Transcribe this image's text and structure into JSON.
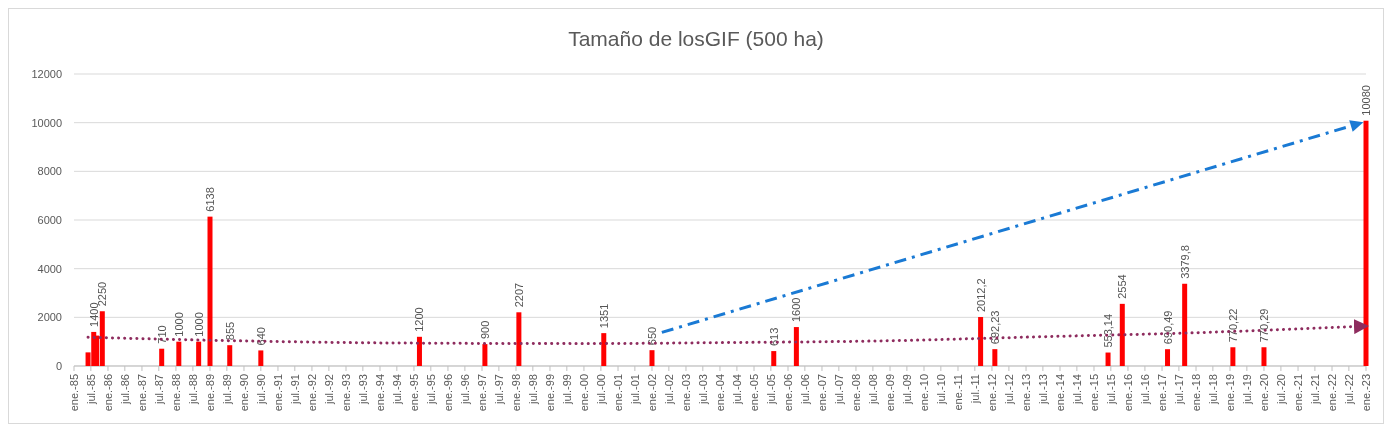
{
  "chart_data": {
    "type": "bar",
    "title": "Tamaño de losGIF (500 ha)",
    "xlim": [
      "1985-01",
      "2023-01"
    ],
    "xticks": [
      {
        "value": "1985-01",
        "label": "ene.-85"
      },
      {
        "value": "1985-07",
        "label": "jul.-85"
      },
      {
        "value": "1986-01",
        "label": "ene.-86"
      },
      {
        "value": "1986-07",
        "label": "jul.-86"
      },
      {
        "value": "1987-01",
        "label": "ene.-87"
      },
      {
        "value": "1987-07",
        "label": "jul.-87"
      },
      {
        "value": "1988-01",
        "label": "ene.-88"
      },
      {
        "value": "1988-07",
        "label": "jul.-88"
      },
      {
        "value": "1989-01",
        "label": "ene.-89"
      },
      {
        "value": "1989-07",
        "label": "jul.-89"
      },
      {
        "value": "1990-01",
        "label": "ene.-90"
      },
      {
        "value": "1990-07",
        "label": "jul.-90"
      },
      {
        "value": "1991-01",
        "label": "ene.-91"
      },
      {
        "value": "1991-07",
        "label": "jul.-91"
      },
      {
        "value": "1992-01",
        "label": "ene.-92"
      },
      {
        "value": "1992-07",
        "label": "jul.-92"
      },
      {
        "value": "1993-01",
        "label": "ene.-93"
      },
      {
        "value": "1993-07",
        "label": "jul.-93"
      },
      {
        "value": "1994-01",
        "label": "ene.-94"
      },
      {
        "value": "1994-07",
        "label": "jul.-94"
      },
      {
        "value": "1995-01",
        "label": "ene.-95"
      },
      {
        "value": "1995-07",
        "label": "jul.-95"
      },
      {
        "value": "1996-01",
        "label": "ene.-96"
      },
      {
        "value": "1996-07",
        "label": "jul.-96"
      },
      {
        "value": "1997-01",
        "label": "ene.-97"
      },
      {
        "value": "1997-07",
        "label": "jul.-97"
      },
      {
        "value": "1998-01",
        "label": "ene.-98"
      },
      {
        "value": "1998-07",
        "label": "jul.-98"
      },
      {
        "value": "1999-01",
        "label": "ene.-99"
      },
      {
        "value": "1999-07",
        "label": "jul.-99"
      },
      {
        "value": "2000-01",
        "label": "ene.-00"
      },
      {
        "value": "2000-07",
        "label": "jul.-00"
      },
      {
        "value": "2001-01",
        "label": "ene.-01"
      },
      {
        "value": "2001-07",
        "label": "jul.-01"
      },
      {
        "value": "2002-01",
        "label": "ene.-02"
      },
      {
        "value": "2002-07",
        "label": "jul.-02"
      },
      {
        "value": "2003-01",
        "label": "ene.-03"
      },
      {
        "value": "2003-07",
        "label": "jul.-03"
      },
      {
        "value": "2004-01",
        "label": "ene.-04"
      },
      {
        "value": "2004-07",
        "label": "jul.-04"
      },
      {
        "value": "2005-01",
        "label": "ene.-05"
      },
      {
        "value": "2005-07",
        "label": "jul.-05"
      },
      {
        "value": "2006-01",
        "label": "ene.-06"
      },
      {
        "value": "2006-07",
        "label": "jul.-06"
      },
      {
        "value": "2007-01",
        "label": "ene.-07"
      },
      {
        "value": "2007-07",
        "label": "jul.-07"
      },
      {
        "value": "2008-01",
        "label": "ene.-08"
      },
      {
        "value": "2008-07",
        "label": "jul.-08"
      },
      {
        "value": "2009-01",
        "label": "ene.-09"
      },
      {
        "value": "2009-07",
        "label": "jul.-09"
      },
      {
        "value": "2010-01",
        "label": "ene.-10"
      },
      {
        "value": "2010-07",
        "label": "jul.-10"
      },
      {
        "value": "2011-01",
        "label": "ene.-11"
      },
      {
        "value": "2011-07",
        "label": "jul.-11"
      },
      {
        "value": "2012-01",
        "label": "ene.-12"
      },
      {
        "value": "2012-07",
        "label": "jul.-12"
      },
      {
        "value": "2013-01",
        "label": "ene.-13"
      },
      {
        "value": "2013-07",
        "label": "jul.-13"
      },
      {
        "value": "2014-01",
        "label": "ene.-14"
      },
      {
        "value": "2014-07",
        "label": "jul.-14"
      },
      {
        "value": "2015-01",
        "label": "ene.-15"
      },
      {
        "value": "2015-07",
        "label": "jul.-15"
      },
      {
        "value": "2016-01",
        "label": "ene.-16"
      },
      {
        "value": "2016-07",
        "label": "jul.-16"
      },
      {
        "value": "2017-01",
        "label": "ene.-17"
      },
      {
        "value": "2017-07",
        "label": "jul.-17"
      },
      {
        "value": "2018-01",
        "label": "ene.-18"
      },
      {
        "value": "2018-07",
        "label": "jul.-18"
      },
      {
        "value": "2019-01",
        "label": "ene.-19"
      },
      {
        "value": "2019-07",
        "label": "jul.-19"
      },
      {
        "value": "2020-01",
        "label": "ene.-20"
      },
      {
        "value": "2020-07",
        "label": "jul.-20"
      },
      {
        "value": "2021-01",
        "label": "ene.-21"
      },
      {
        "value": "2021-07",
        "label": "jul.-21"
      },
      {
        "value": "2022-01",
        "label": "ene.-22"
      },
      {
        "value": "2022-07",
        "label": "jul.-22"
      },
      {
        "value": "2023-01",
        "label": "ene.-23"
      }
    ],
    "ylim": [
      0,
      12000
    ],
    "yticks": [
      0,
      2000,
      4000,
      6000,
      8000,
      10000,
      12000
    ],
    "grid": "y",
    "series": [
      {
        "color": "#ff0000",
        "x": [
          "1985-06",
          "1985-08",
          "1985-09",
          "1985-11",
          "1987-08",
          "1988-02",
          "1988-09",
          "1989-01",
          "1989-08",
          "1990-07",
          "1995-03",
          "1997-02",
          "1998-02",
          "2000-08",
          "2002-01",
          "2005-08",
          "2006-04",
          "2011-09",
          "2012-02",
          "2015-06",
          "2015-11",
          "2017-03",
          "2017-09",
          "2019-02",
          "2020-01",
          "2023-01"
        ],
        "values": [
          560,
          1400,
          1250,
          2250,
          710,
          1000,
          1000,
          6138,
          855,
          640,
          1200,
          900,
          2207,
          1351,
          650,
          613,
          1600,
          2012.2,
          692.23,
          553.14,
          2554,
          690.49,
          3379.8,
          770.22,
          770.29,
          10080
        ],
        "value_labels": [
          null,
          "1400",
          null,
          "2250",
          "710",
          "1000",
          "1000",
          "6138",
          "855",
          "640",
          "1200",
          "900",
          "2207",
          "1351",
          "650",
          "613",
          "1600",
          "2012,2",
          "692,23",
          "553,14",
          "2554",
          "690,49",
          "3379,8",
          "770,22",
          "770,29",
          "10080"
        ]
      },
      {
        "type": "line",
        "color": "#8e2c5e",
        "line_style": "dotted",
        "marker": "none",
        "x": [
          "1985-06",
          "1990-01",
          "1994-01",
          "2000-01",
          "2004-01",
          "2008-09",
          "2013-09",
          "2017-08",
          "2023-01"
        ],
        "values": [
          1180,
          1030,
          950,
          920,
          960,
          1030,
          1210,
          1350,
          1640
        ]
      }
    ]
  }
}
